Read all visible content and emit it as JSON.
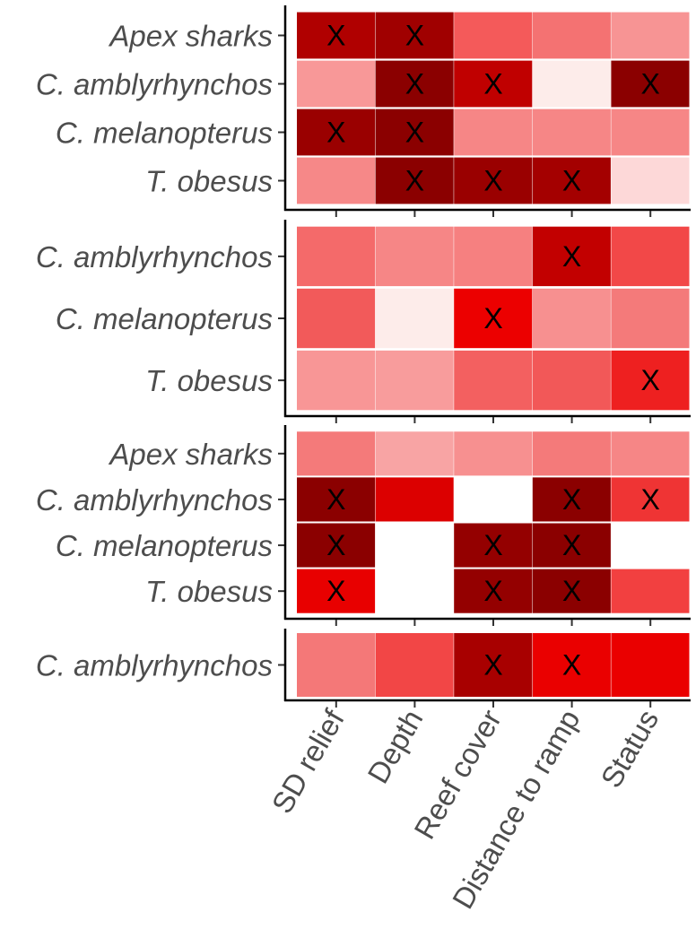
{
  "chart_data": {
    "type": "heatmap",
    "columns": [
      "SD relief",
      "Depth",
      "Reef cover",
      "Distance to ramp",
      "Status"
    ],
    "color_scale": {
      "low": "#ffffff",
      "high": "#8b0000"
    },
    "marker": "X",
    "panels": [
      {
        "rows": [
          "Apex sharks",
          "C. amblyrhynchos",
          "C. melanopterus",
          "T. obesus"
        ],
        "colors": [
          [
            "#b00000",
            "#a00000",
            "#f45a5a",
            "#f47272",
            "#f79494"
          ],
          [
            "#f89898",
            "#8b0000",
            "#c00000",
            "#fdecea",
            "#8b0000"
          ],
          [
            "#9a0000",
            "#8b0000",
            "#f68686",
            "#f68686",
            "#f68686"
          ],
          [
            "#f68888",
            "#8b0000",
            "#9a0000",
            "#a40000",
            "#fdd8d8"
          ]
        ],
        "marked": [
          [
            true,
            true,
            false,
            false,
            false
          ],
          [
            false,
            true,
            true,
            false,
            true
          ],
          [
            true,
            true,
            false,
            false,
            false
          ],
          [
            false,
            true,
            true,
            true,
            false
          ]
        ]
      },
      {
        "rows": [
          "C. amblyrhynchos",
          "C. melanopterus",
          "T. obesus"
        ],
        "colors": [
          [
            "#f46a6a",
            "#f68686",
            "#f68080",
            "#c20000",
            "#f24848"
          ],
          [
            "#f25a5a",
            "#fdecea",
            "#ec0000",
            "#f79090",
            "#f47a7a"
          ],
          [
            "#f89696",
            "#f89c9c",
            "#f36060",
            "#f25858",
            "#ee2020"
          ]
        ],
        "marked": [
          [
            false,
            false,
            false,
            true,
            false
          ],
          [
            false,
            false,
            true,
            false,
            false
          ],
          [
            false,
            false,
            false,
            false,
            true
          ]
        ]
      },
      {
        "rows": [
          "Apex sharks",
          "C. amblyrhynchos",
          "C. melanopterus",
          "T. obesus"
        ],
        "colors": [
          [
            "#f47a7a",
            "#f8a4a4",
            "#f79090",
            "#f47a7a",
            "#f68686"
          ],
          [
            "#8b0000",
            "#dc0000",
            "#ffffff",
            "#8b0000",
            "#ef3434"
          ],
          [
            "#8b0000",
            "#ffffff",
            "#940000",
            "#8b0000",
            "#ffffff"
          ],
          [
            "#e80000",
            "#ffffff",
            "#940000",
            "#8b0000",
            "#f24040"
          ]
        ],
        "marked": [
          [
            false,
            false,
            false,
            false,
            false
          ],
          [
            true,
            false,
            false,
            true,
            true
          ],
          [
            true,
            false,
            true,
            true,
            false
          ],
          [
            true,
            false,
            true,
            true,
            false
          ]
        ]
      },
      {
        "rows": [
          "C. amblyrhynchos"
        ],
        "colors": [
          [
            "#f47878",
            "#f24646",
            "#a80000",
            "#ea0000",
            "#ea0000"
          ]
        ],
        "marked": [
          [
            false,
            false,
            true,
            true,
            false
          ]
        ]
      }
    ]
  }
}
